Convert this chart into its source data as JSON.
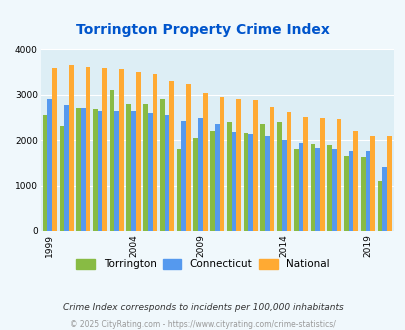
{
  "title": "Torrington Property Crime Index",
  "title_color": "#0055cc",
  "subtitle": "Crime Index corresponds to incidents per 100,000 inhabitants",
  "footer": "© 2025 CityRating.com - https://www.cityrating.com/crime-statistics/",
  "years": [
    1999,
    2000,
    2001,
    2002,
    2003,
    2004,
    2005,
    2006,
    2008,
    2009,
    2010,
    2011,
    2012,
    2013,
    2014,
    2015,
    2016,
    2017,
    2018,
    2019,
    2020
  ],
  "torrington": [
    2550,
    2320,
    2700,
    2680,
    3100,
    2800,
    2800,
    2920,
    1800,
    2050,
    2200,
    2400,
    2150,
    2350,
    2400,
    1800,
    1920,
    1900,
    1650,
    1630,
    1100
  ],
  "connecticut": [
    2900,
    2780,
    2700,
    2650,
    2650,
    2650,
    2600,
    2560,
    2420,
    2500,
    2350,
    2180,
    2130,
    2100,
    2000,
    1950,
    1820,
    1800,
    1760,
    1760,
    1420
  ],
  "national": [
    3600,
    3650,
    3620,
    3600,
    3560,
    3500,
    3450,
    3300,
    3250,
    3050,
    2950,
    2900,
    2880,
    2730,
    2620,
    2510,
    2490,
    2460,
    2210,
    2100,
    2100
  ],
  "torrington_color": "#88bb44",
  "connecticut_color": "#5599ee",
  "national_color": "#ffaa33",
  "bg_color": "#f0f8fc",
  "plot_bg_color": "#ddeef5",
  "ylim": [
    0,
    4000
  ],
  "yticks": [
    0,
    1000,
    2000,
    3000,
    4000
  ],
  "legend_labels": [
    "Torrington",
    "Connecticut",
    "National"
  ],
  "bar_width": 0.28,
  "tick_years": [
    1999,
    2004,
    2009,
    2014,
    2019
  ]
}
